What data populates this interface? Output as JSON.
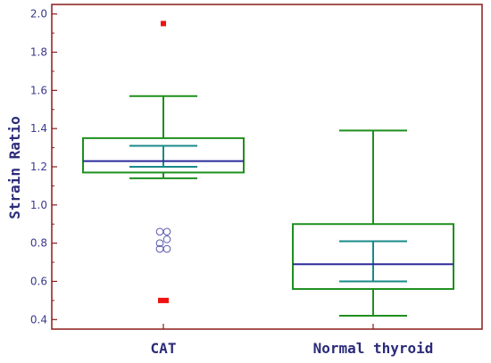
{
  "colors": {
    "axis": "#8b1a1a",
    "box": "#1f8f1f",
    "median": "#2b2b9a",
    "ci": "#1a8a8a",
    "outlier_far": "#ee1111",
    "outlier_near": "#5a5ab0",
    "text": "#2b2b7a"
  },
  "chart_data": {
    "type": "box",
    "ylabel": "Strain Ratio",
    "xlabel": "",
    "ylim": [
      0.35,
      2.05
    ],
    "y_ticks": [
      "0.4",
      "0.6",
      "0.8",
      "1.0",
      "1.2",
      "1.4",
      "1.6",
      "1.8",
      "2.0"
    ],
    "categories": [
      "CAT",
      "Normal thyroid"
    ],
    "boxes": [
      {
        "name": "CAT",
        "whisker_low": 1.14,
        "q1": 1.17,
        "median": 1.23,
        "q3": 1.35,
        "whisker_high": 1.57,
        "ci_low": 1.2,
        "ci_high": 1.31,
        "outliers_near": [
          0.86,
          0.86,
          0.82,
          0.8,
          0.77,
          0.77
        ],
        "outliers_far": [
          1.95,
          0.5,
          0.5
        ]
      },
      {
        "name": "Normal thyroid",
        "whisker_low": 0.42,
        "q1": 0.56,
        "median": 0.69,
        "q3": 0.9,
        "whisker_high": 1.39,
        "ci_low": 0.6,
        "ci_high": 0.81,
        "outliers_near": [],
        "outliers_far": []
      }
    ]
  }
}
